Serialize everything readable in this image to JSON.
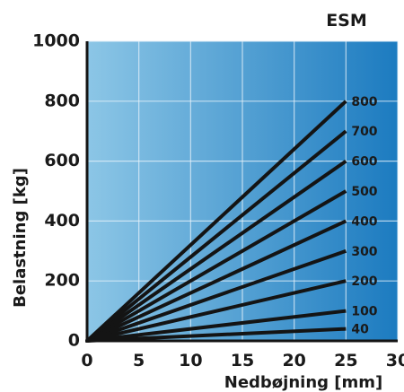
{
  "chart_data": {
    "type": "line",
    "title": "ESM",
    "xlabel": "Nedbøjning [mm]",
    "ylabel": "Belastning [kg]",
    "xlim": [
      0,
      30
    ],
    "ylim": [
      0,
      1000
    ],
    "x_ticks": [
      "0",
      "5",
      "10",
      "15",
      "20",
      "25",
      "30"
    ],
    "y_ticks": [
      "0",
      "200",
      "400",
      "600",
      "800",
      "1000"
    ],
    "grid": true,
    "series": [
      {
        "name": "800",
        "x": [
          0,
          25
        ],
        "y": [
          0,
          800
        ]
      },
      {
        "name": "700",
        "x": [
          0,
          25
        ],
        "y": [
          0,
          700
        ]
      },
      {
        "name": "600",
        "x": [
          0,
          25
        ],
        "y": [
          0,
          600
        ]
      },
      {
        "name": "500",
        "x": [
          0,
          25
        ],
        "y": [
          0,
          500
        ]
      },
      {
        "name": "400",
        "x": [
          0,
          25
        ],
        "y": [
          0,
          400
        ]
      },
      {
        "name": "300",
        "x": [
          0,
          25
        ],
        "y": [
          0,
          300
        ]
      },
      {
        "name": "200",
        "x": [
          0,
          25
        ],
        "y": [
          0,
          200
        ]
      },
      {
        "name": "100",
        "x": [
          0,
          25
        ],
        "y": [
          0,
          100
        ]
      },
      {
        "name": "40",
        "x": [
          0,
          25
        ],
        "y": [
          0,
          40
        ]
      }
    ],
    "colors": {
      "plot_bg_left": "#8cc6e6",
      "plot_bg_right": "#1c7bc0",
      "grid": "#e6f2fa",
      "line": "#141414",
      "axis": "#141414"
    }
  }
}
